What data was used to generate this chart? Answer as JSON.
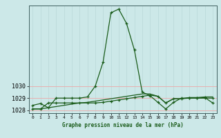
{
  "series1": [
    1028.4,
    1028.55,
    1028.2,
    1029.0,
    1029.0,
    1029.0,
    1029.0,
    1029.1,
    1030.0,
    1032.0,
    1036.1,
    1036.4,
    1035.2,
    1033.0,
    1029.5,
    1029.2,
    1028.65,
    1028.1,
    1028.65,
    1029.0,
    1029.0,
    1029.0,
    1029.0,
    1029.0
  ],
  "series2": [
    1028.1,
    1028.1,
    1028.6,
    1028.6,
    1028.6,
    1028.6,
    1028.6,
    1028.6,
    1028.6,
    1028.65,
    1028.75,
    1028.85,
    1028.95,
    1029.05,
    1029.15,
    1029.25,
    1029.15,
    1028.6,
    1028.95,
    1028.95,
    1029.0,
    1029.0,
    1029.05,
    1028.6
  ],
  "series3": [
    1028.1,
    1028.1,
    1028.2,
    1028.3,
    1028.4,
    1028.5,
    1028.6,
    1028.65,
    1028.75,
    1028.85,
    1028.95,
    1029.05,
    1029.15,
    1029.25,
    1029.35,
    1029.35,
    1029.15,
    1028.6,
    1028.95,
    1028.95,
    1029.05,
    1029.05,
    1029.1,
    1029.1
  ],
  "x": [
    0,
    1,
    2,
    3,
    4,
    5,
    6,
    7,
    8,
    9,
    10,
    11,
    12,
    13,
    14,
    15,
    16,
    17,
    18,
    19,
    20,
    21,
    22,
    23
  ],
  "ylim": [
    1027.75,
    1036.7
  ],
  "yticks": [
    1028,
    1029,
    1030
  ],
  "xticks": [
    0,
    1,
    2,
    3,
    4,
    5,
    6,
    7,
    8,
    9,
    10,
    11,
    12,
    13,
    14,
    15,
    16,
    17,
    18,
    19,
    20,
    21,
    22,
    23
  ],
  "line_color": "#1a5c1a",
  "bg_color": "#cce8e8",
  "grid_color_h": "#e8b0b0",
  "grid_color_v": "#b8d8d8",
  "xlabel": "Graphe pression niveau de la mer (hPa)",
  "marker": "+",
  "markersize": 3.5,
  "linewidth": 0.9
}
